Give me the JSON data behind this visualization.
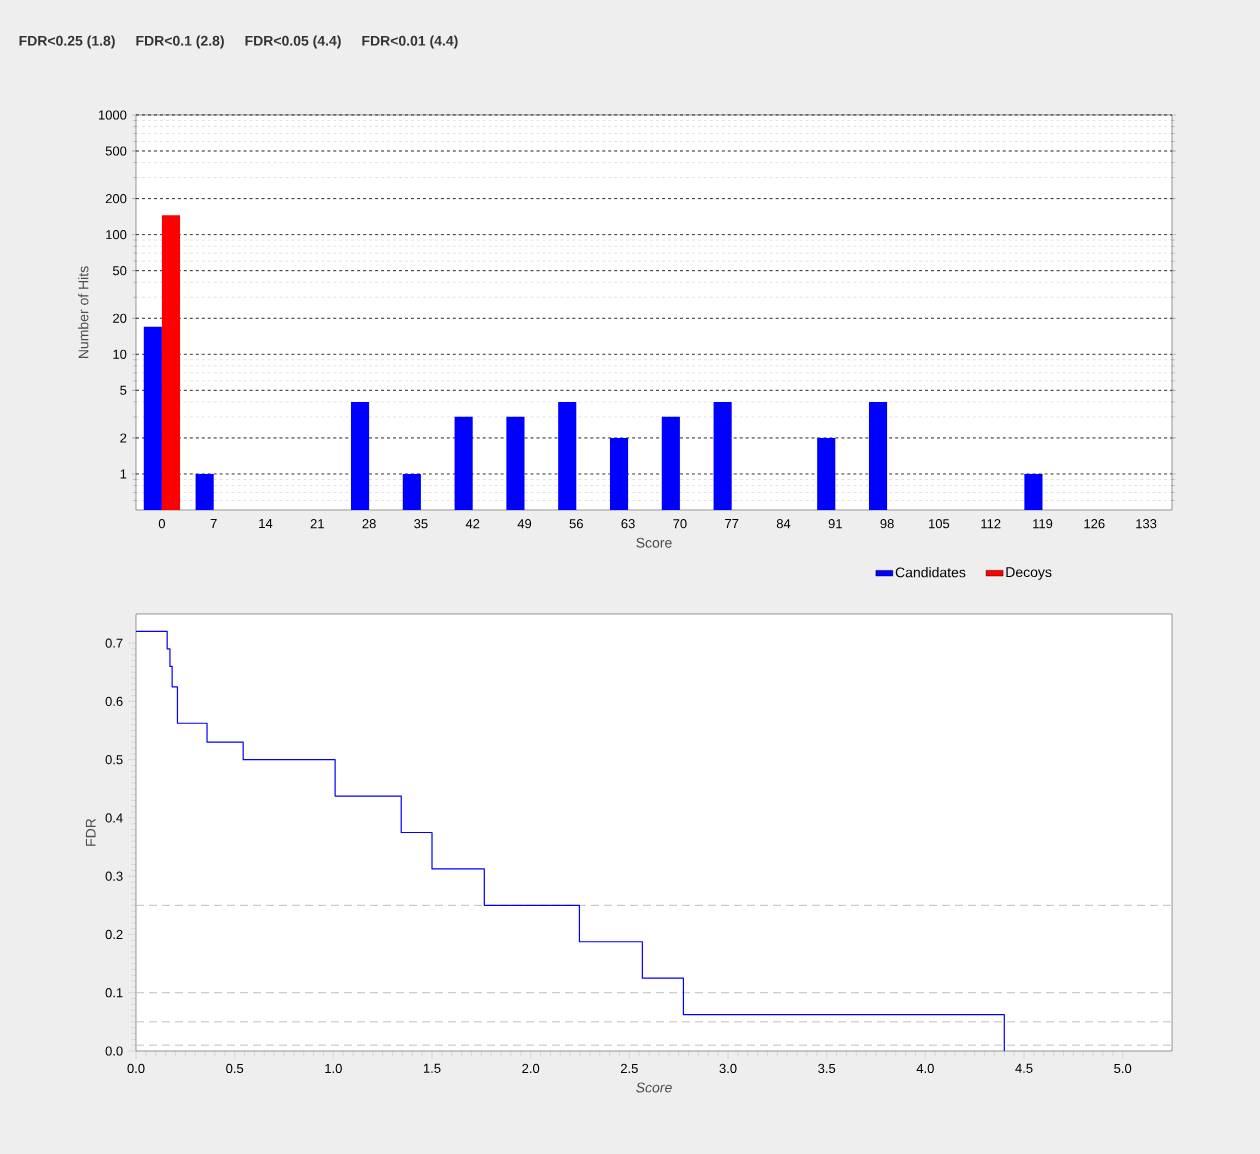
{
  "chart_data": [
    {
      "type": "bar",
      "xlabel": "Score",
      "ylabel": "Number of Hits",
      "categories": [
        "0",
        "7",
        "14",
        "21",
        "28",
        "35",
        "42",
        "49",
        "56",
        "63",
        "70",
        "77",
        "84",
        "91",
        "98",
        "105",
        "112",
        "119",
        "126",
        "133"
      ],
      "series": [
        {
          "name": "Candidates",
          "color": "#0000ff",
          "values": [
            17,
            1,
            null,
            null,
            4,
            1,
            3,
            3,
            4,
            2,
            3,
            4,
            null,
            2,
            4,
            null,
            null,
            1,
            null,
            null
          ]
        },
        {
          "name": "Decoys",
          "color": "#ff0000",
          "values": [
            145,
            null,
            null,
            null,
            null,
            null,
            null,
            null,
            null,
            null,
            null,
            null,
            null,
            null,
            null,
            null,
            null,
            null,
            null,
            null
          ]
        }
      ],
      "log": "y",
      "ylim": [
        0.5,
        1000
      ],
      "yticks": [
        1,
        2,
        5,
        10,
        20,
        50,
        100,
        200,
        500,
        1000
      ],
      "grid": "y",
      "legend": "bottom"
    },
    {
      "type": "step",
      "xlabel": "Score",
      "ylabel": "FDR",
      "annotations": [
        "FDR<0.25 (1.8)",
        "FDR<0.1 (2.8)",
        "FDR<0.05 (4.4)",
        "FDR<0.01 (4.4)"
      ],
      "x": [
        0,
        0.158,
        0.172,
        0.183,
        0.21,
        0.36,
        0.543,
        1.009,
        1.344,
        1.5,
        1.765,
        2.247,
        2.566,
        2.774,
        4.4
      ],
      "values": [
        0.72,
        0.69,
        0.66,
        0.625,
        0.5625,
        0.53,
        0.5,
        0.4375,
        0.375,
        0.3125,
        0.25,
        0.1875,
        0.125,
        0.0625,
        0
      ],
      "color": "#0000ff",
      "xlim": [
        0,
        5.25
      ],
      "ylim": [
        0,
        0.75
      ],
      "xticks": [
        {
          "value": 0,
          "label": "0.0"
        },
        0.5,
        {
          "value": 1,
          "label": "1.0"
        },
        1.5,
        {
          "value": 2,
          "label": "2.0"
        },
        2.5,
        {
          "value": 3,
          "label": "3.0"
        },
        3.5,
        {
          "value": 4,
          "label": "4.0"
        },
        4.5,
        {
          "value": 5,
          "label": "5.0"
        }
      ],
      "yticks": [
        {
          "value": 0,
          "label": "0.0"
        },
        0.1,
        0.2,
        0.3,
        0.4,
        0.5,
        0.6,
        0.7
      ],
      "ref_lines": [
        {
          "axis": "y",
          "value": 0.25,
          "color": "#c0c0c0",
          "line_style": "dashed"
        },
        {
          "axis": "y",
          "value": 0.1,
          "color": "#c0c0c0",
          "line_style": "dashed"
        },
        {
          "axis": "y",
          "value": 0.05,
          "color": "#c0c0c0",
          "line_style": "dashed"
        },
        {
          "axis": "y",
          "value": 0.01,
          "color": "#c0c0c0",
          "line_style": "dashed"
        }
      ]
    }
  ]
}
